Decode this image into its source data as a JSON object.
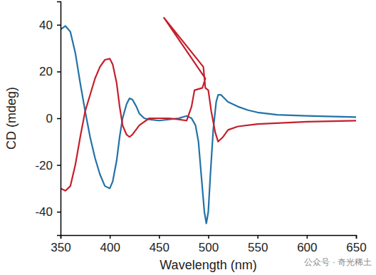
{
  "chart_data": {
    "type": "line",
    "x_label": "Wavelength (nm)",
    "y_label": "CD (mdeg)",
    "annotations": [
      "公众号 · 奇光稀土"
    ],
    "xlim": [
      350,
      650
    ],
    "xticks": [
      350,
      400,
      450,
      500,
      550,
      600,
      650
    ],
    "ylim": [
      -50,
      50
    ],
    "yticks": [
      -40,
      -20,
      0,
      20,
      40
    ],
    "grid": false,
    "series": [
      {
        "color": "#2272a8",
        "x": [
          350,
          355,
          360,
          365,
          370,
          375,
          380,
          385,
          390,
          395,
          400,
          403,
          407,
          410,
          413,
          417,
          420,
          423,
          427,
          430,
          435,
          440,
          450,
          460,
          470,
          478,
          483,
          487,
          490,
          493,
          496,
          498,
          500,
          502,
          505,
          508,
          510,
          513,
          520,
          530,
          540,
          550,
          570,
          600,
          650
        ],
        "values": [
          38,
          39.5,
          37,
          28,
          15,
          3,
          -8,
          -17,
          -24,
          -29,
          -30,
          -27,
          -18,
          -8,
          0,
          6,
          8.5,
          8,
          5,
          2,
          0,
          -0.5,
          -1,
          -0.5,
          0,
          1,
          0,
          -3,
          -10,
          -25,
          -40,
          -45,
          -40,
          -25,
          -5,
          7,
          10,
          10,
          7,
          5,
          3.5,
          2.5,
          1.5,
          1,
          0.5
        ]
      },
      {
        "color": "#c4202c",
        "x": [
          350,
          355,
          360,
          365,
          370,
          375,
          380,
          385,
          390,
          395,
          400,
          403,
          407,
          410,
          413,
          417,
          420,
          423,
          430,
          440,
          450,
          460,
          470,
          478,
          483,
          486,
          494,
          497,
          455,
          495,
          497,
          500,
          503,
          507,
          510,
          515,
          520,
          530,
          550,
          600,
          650
        ],
        "values": [
          -30,
          -31,
          -29,
          -20,
          -8,
          3,
          10,
          17,
          22,
          25,
          25.5,
          23,
          15,
          5,
          -3,
          -7,
          -8,
          -7,
          -3,
          0,
          0,
          0,
          -0.5,
          -1,
          5,
          12,
          13,
          17,
          43,
          22,
          13,
          12,
          3,
          -6,
          -10,
          -8,
          -5,
          -3.5,
          -2.5,
          -1.5,
          -1
        ]
      }
    ]
  }
}
